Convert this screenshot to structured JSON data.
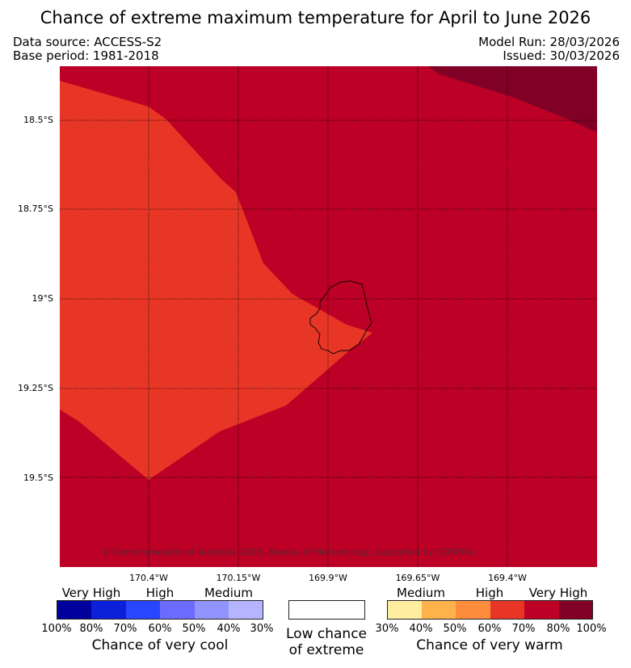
{
  "header": {
    "title": "Chance of extreme maximum temperature for April to June 2026",
    "data_source": "Data source: ACCESS-S2",
    "base_period": "Base period: 1981-2018",
    "model_run": "Model Run: 28/03/2026",
    "issued": "Issued: 30/03/2026"
  },
  "map": {
    "copyright": "© Commonwealth of Australia 2026, Bureau of Meteorology, supported by COSPPac",
    "lat_labels": [
      "18.5°S",
      "18.75°S",
      "19°S",
      "19.25°S",
      "19.5°S"
    ],
    "lon_labels": [
      "170.4°W",
      "170.15°W",
      "169.9°W",
      "169.65°W",
      "169.4°W"
    ],
    "fill_colors": {
      "very_high_warm": "#bd0026",
      "high_warm": "#e83626",
      "extreme_warm": "#800026"
    }
  },
  "legend": {
    "cool": {
      "categories": [
        "Very High",
        "High",
        "Medium"
      ],
      "ticks": [
        "100%",
        "80%",
        "70%",
        "60%",
        "50%",
        "40%",
        "30%"
      ],
      "colors": [
        "#00009c",
        "#0a20d9",
        "#2a45ff",
        "#6b6bff",
        "#9393ff",
        "#b4b4ff"
      ],
      "title": "Chance of very cool"
    },
    "neutral": {
      "title_line1": "Low chance",
      "title_line2": "of extreme",
      "color": "#ffffff"
    },
    "warm": {
      "categories": [
        "Medium",
        "High",
        "Very High"
      ],
      "ticks": [
        "30%",
        "40%",
        "50%",
        "60%",
        "70%",
        "80%",
        "100%"
      ],
      "colors": [
        "#ffeda0",
        "#feb24c",
        "#fd8d3c",
        "#e83626",
        "#bd0026",
        "#800026"
      ],
      "title": "Chance of very warm"
    }
  }
}
